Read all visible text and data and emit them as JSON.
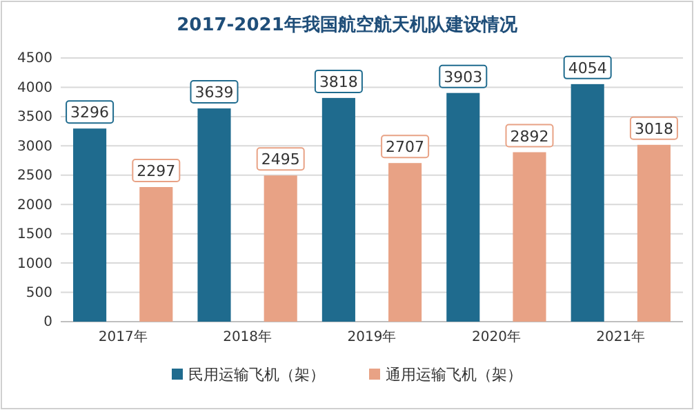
{
  "chart_data": {
    "type": "bar",
    "title": "2017-2021年我国航空航天机队建设情况",
    "categories": [
      "2017年",
      "2018年",
      "2019年",
      "2020年",
      "2021年"
    ],
    "series": [
      {
        "name": "民用运输飞机（架）",
        "color": "#1f6b8e",
        "values": [
          3296,
          3639,
          3818,
          3903,
          4054
        ]
      },
      {
        "name": "通用运输飞机（架）",
        "color": "#e8a285",
        "values": [
          2297,
          2495,
          2707,
          2892,
          3018
        ]
      }
    ],
    "ylim": [
      0,
      4500
    ],
    "yticks": [
      0,
      500,
      1000,
      1500,
      2000,
      2500,
      3000,
      3500,
      4000,
      4500
    ],
    "grid": "y",
    "legend": "bottom",
    "data_labels": true
  }
}
